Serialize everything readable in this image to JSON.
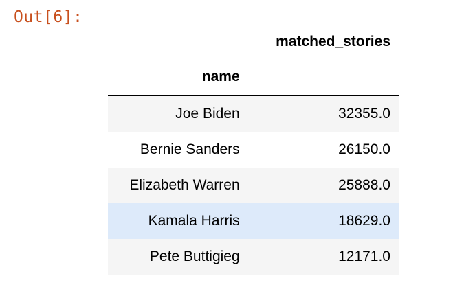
{
  "output_prompt": "Out[6]:",
  "table": {
    "columns": [
      "matched_stories"
    ],
    "index_name": "name",
    "rows": [
      {
        "name": "Joe Biden",
        "matched_stories": "32355.0"
      },
      {
        "name": "Bernie Sanders",
        "matched_stories": "26150.0"
      },
      {
        "name": "Elizabeth Warren",
        "matched_stories": "25888.0"
      },
      {
        "name": "Kamala Harris",
        "matched_stories": "18629.0"
      },
      {
        "name": "Pete Buttigieg",
        "matched_stories": "12171.0"
      }
    ],
    "hovered_row": 3
  },
  "colors": {
    "prompt": "#c8501e",
    "row_stripe": "#f5f5f5",
    "row_hover": "#ddeafa"
  }
}
